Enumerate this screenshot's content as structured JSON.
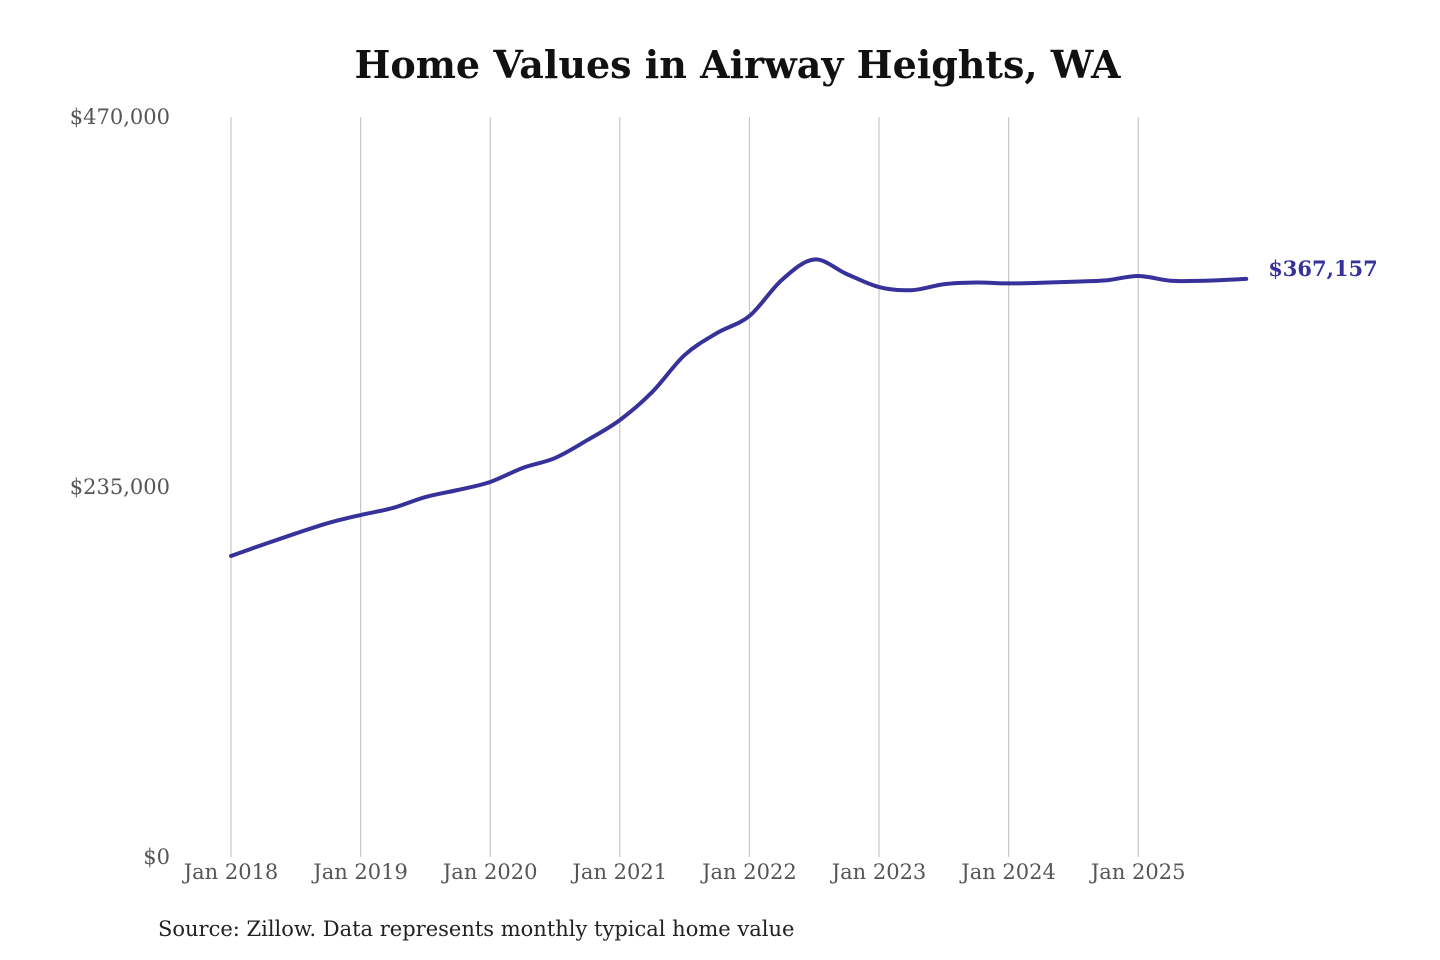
{
  "chart_data": {
    "type": "line",
    "title": "Home Values in Airway Heights, WA",
    "xlabel": "",
    "ylabel": "",
    "ylim": [
      0,
      470000
    ],
    "y_ticks": [
      0,
      235000,
      470000
    ],
    "y_tick_labels": [
      "$0",
      "$235,000",
      "$470,000"
    ],
    "x_ticks": [
      "2018-01",
      "2019-01",
      "2020-01",
      "2021-01",
      "2022-01",
      "2023-01",
      "2024-01",
      "2025-01"
    ],
    "x_tick_labels": [
      "Jan 2018",
      "Jan 2019",
      "Jan 2020",
      "Jan 2021",
      "Jan 2022",
      "Jan 2023",
      "Jan 2024",
      "Jan 2025"
    ],
    "grid": "vertical",
    "line_color": "#37319a",
    "series": [
      {
        "x": [
          "2018-01",
          "2018-04",
          "2018-07",
          "2018-10",
          "2019-01",
          "2019-04",
          "2019-07",
          "2019-10",
          "2020-01",
          "2020-04",
          "2020-07",
          "2020-10",
          "2021-01",
          "2021-04",
          "2021-07",
          "2021-10",
          "2022-01",
          "2022-04",
          "2022-07",
          "2022-10",
          "2023-01",
          "2023-04",
          "2023-07",
          "2023-10",
          "2024-01",
          "2024-04",
          "2024-07",
          "2024-10",
          "2025-01",
          "2025-04",
          "2025-07",
          "2025-11"
        ],
        "values": [
          191200,
          198500,
          205500,
          212100,
          217200,
          221700,
          228600,
          233100,
          238200,
          247100,
          253400,
          264800,
          277500,
          295300,
          318800,
          332800,
          343600,
          366500,
          379500,
          370300,
          362000,
          360000,
          363800,
          364900,
          364300,
          364700,
          365400,
          366200,
          369000,
          366000,
          366000,
          367157
        ]
      }
    ],
    "end_label": "$367,157",
    "source": "Source: Zillow. Data represents monthly typical home value"
  }
}
